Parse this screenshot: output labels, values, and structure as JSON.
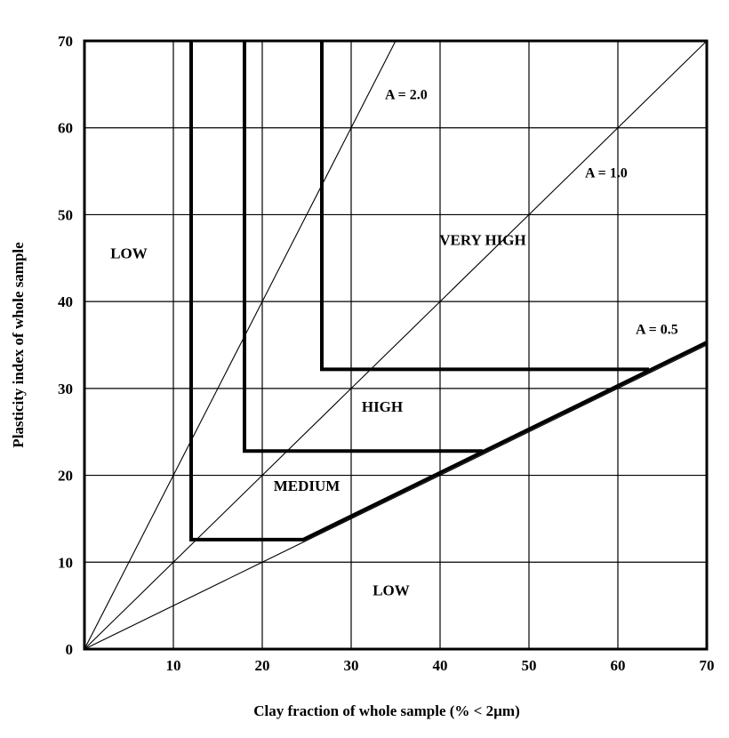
{
  "chart_data": {
    "type": "line",
    "xlabel": "Clay fraction of whole sample (% < 2µm)",
    "ylabel": "Plasticity index of whole sample",
    "xlim": [
      0,
      70
    ],
    "ylim": [
      0,
      70
    ],
    "x_ticks": [
      0,
      10,
      20,
      30,
      40,
      50,
      60,
      70
    ],
    "y_ticks": [
      0,
      10,
      20,
      30,
      40,
      50,
      60,
      70
    ],
    "x_tick_labels": [
      "10",
      "20",
      "30",
      "40",
      "50",
      "60",
      "70"
    ],
    "y_tick_labels": [
      "0",
      "10",
      "20",
      "30",
      "40",
      "50",
      "60",
      "70"
    ],
    "grid": true,
    "activity_lines": [
      {
        "label": "A = 2.0",
        "slope": 2.0
      },
      {
        "label": "A = 1.0",
        "slope": 1.0
      },
      {
        "label": "A = 0.5",
        "slope": 0.5
      }
    ],
    "boundaries": [
      {
        "name": "low-medium",
        "points": [
          [
            12,
            70
          ],
          [
            12,
            12.6
          ],
          [
            24.6,
            12.6
          ],
          [
            70,
            35.3
          ]
        ]
      },
      {
        "name": "medium-high",
        "points": [
          [
            18,
            70
          ],
          [
            18,
            22.8
          ],
          [
            44.8,
            22.8
          ]
        ]
      },
      {
        "name": "high-very-high",
        "points": [
          [
            26.7,
            70
          ],
          [
            26.7,
            32.2
          ],
          [
            63.5,
            32.2
          ]
        ]
      }
    ],
    "region_labels": [
      {
        "text": "LOW",
        "x": 5,
        "y": 45
      },
      {
        "text": "VERY HIGH",
        "x": 44.8,
        "y": 46.5
      },
      {
        "text": "HIGH",
        "x": 33.5,
        "y": 27.3
      },
      {
        "text": "MEDIUM",
        "x": 25,
        "y": 18.2
      },
      {
        "text": "LOW",
        "x": 34.5,
        "y": 6.2
      }
    ],
    "line_label_positions": [
      {
        "label": "A = 2.0",
        "x": 33.8,
        "y": 63.3
      },
      {
        "label": "A = 1.0",
        "x": 56.3,
        "y": 54.3
      },
      {
        "label": "A = 0.5",
        "x": 62,
        "y": 36.3
      }
    ]
  }
}
